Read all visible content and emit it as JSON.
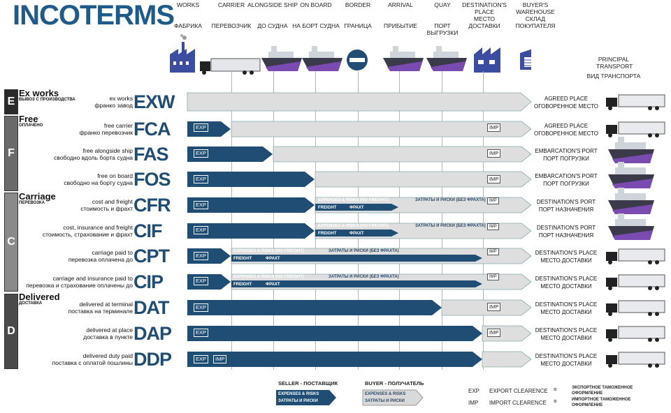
{
  "title": "INCOTERMS",
  "columns": [
    {
      "en": "WORKS",
      "ru": "ФАБРИКА"
    },
    {
      "en": "CARRIER",
      "ru": "ПЕРЕВОЗЧИК"
    },
    {
      "en": "ALONGSIDE SHIP",
      "ru": "ДО СУДНА"
    },
    {
      "en": "ON BOARD",
      "ru": "НА БОРТ СУДНА"
    },
    {
      "en": "BORDER",
      "ru": "ГРАНИЦА"
    },
    {
      "en": "ARRIVAL",
      "ru": "ПРИБЫТИЕ"
    },
    {
      "en": "QUAY",
      "ru": "ПОРТ ВЫГРУЗКИ"
    },
    {
      "en": "DESTINATION'S PLACE",
      "ru": "МЕСТО ДОСТАВКИ"
    },
    {
      "en": "BUYER'S WAREHOUSE",
      "ru": "СКЛАД ПОКУПАТЕЛЯ"
    }
  ],
  "principal_transport": {
    "en": "PRINCIPAL TRANSPORT",
    "ru": "ВИД ТРАНСПОРТА"
  },
  "groups": [
    {
      "letter": "E",
      "name": "Ex works",
      "sub": "ВЫВОЗ С ПРОИЗВОДСТВА"
    },
    {
      "letter": "F",
      "name": "Free",
      "sub": "ОПЛАЧЕНО"
    },
    {
      "letter": "C",
      "name": "Carriage",
      "sub": "ПЕРЕВОЗКА"
    },
    {
      "letter": "D",
      "name": "Delivered",
      "sub": "ДОСТАВКА"
    }
  ],
  "rows": [
    {
      "code": "EXW",
      "en": "ex works",
      "ru": "франко завод",
      "dest_en": "AGREED PLACE",
      "dest_ru": "ОГОВОРЕННОЕ МЕСТО"
    },
    {
      "code": "FCA",
      "en": "free carrier",
      "ru": "франко перевозчик",
      "dest_en": "AGREED PLACE",
      "dest_ru": "ОГОВОРЕННОЕ МЕСТО"
    },
    {
      "code": "FAS",
      "en": "free alongside ship",
      "ru": "свободно вдоль борта судна",
      "dest_en": "EMBARCATION'S PORT",
      "dest_ru": "ПОРТ ПОГРУЗКИ"
    },
    {
      "code": "FOS",
      "en": "free on board",
      "ru": "свободно на борту судна",
      "dest_en": "EMBARCATION'S PORT",
      "dest_ru": "ПОРТ ПОГРУЗКИ"
    },
    {
      "code": "CFR",
      "en": "cost and freight",
      "ru": "стоимость и фрахт",
      "dest_en": "DESTINATION'S PORT",
      "dest_ru": "ПОРТ НАЗНАЧЕНИЯ"
    },
    {
      "code": "CIF",
      "en": "cost, insurance and freight",
      "ru": "стоимость, страхование и фрахт",
      "dest_en": "DESTINATION'S PORT",
      "dest_ru": "ПОРТ НАЗНАЧЕНИЯ"
    },
    {
      "code": "CPT",
      "en": "carriage paid to",
      "ru": "перевозка оплачена до",
      "dest_en": "DESTINATION'S PLACE",
      "dest_ru": "МЕСТО ДОСТАВКИ"
    },
    {
      "code": "CIP",
      "en": "carriage and insurance paid to",
      "ru": "перевозка и страхование оплачены до",
      "dest_en": "DESTINATION'S PLACE",
      "dest_ru": "МЕСТО ДОСТАВКИ"
    },
    {
      "code": "DAT",
      "en": "delivered at terminal",
      "ru": "поставка на терминале",
      "dest_en": "DESTINATION'S PLACE",
      "dest_ru": "МЕСТО ДОСТАВКИ"
    },
    {
      "code": "DAP",
      "en": "delivered at place",
      "ru": "доставка в пункте",
      "dest_en": "DESTINATION'S PLACE",
      "dest_ru": "МЕСТО ДОСТАВКИ"
    },
    {
      "code": "DDP",
      "en": "delivered duty paid",
      "ru": "поставка с оплатой пошлины",
      "dest_en": "DESTINATION'S PLACE",
      "dest_ru": "МЕСТО ДОСТАВКИ"
    }
  ],
  "labels": {
    "exp": "EXP",
    "imp": "IMP",
    "exp_risks_no_freight": "EXPENSES & RISKS (NO FREIGHT)",
    "ru_risks_no_freight_1": "ЗАТРАТЫ И РИСКИ (БЕЗ ФРАХТА)",
    "ru_risks_no_freight_2": "ЗАТРАТЫ И РИСКИ (БЕЗ ФРАХТА)",
    "freight": "FREIGHT",
    "fracht": "ФРАХТ"
  },
  "legend": {
    "seller": "SELLER - ПОСТАВЩИК",
    "buyer": "BUYER - ПОЛУЧАТЕЛЬ",
    "box_en": "EXPENSES & RISKS",
    "box_ru": "ЗАТРАТЫ И РИСКИ",
    "exp_code": "EXP",
    "exp_text": "EXPORT CLEARENCE",
    "exp_ru": "ЭКСПОРТНОЕ ТАМОЖЕННОЕ ОФОРМЛЕНИЕ",
    "imp_code": "IMP",
    "imp_text": "IMPORT CLEARENCE",
    "imp_ru": "ИМПОРТНОЕ ТАМОЖЕННОЕ ОФОРМЛЕНИЕ",
    "dash": "="
  },
  "colors": {
    "seller": "#1f4d73",
    "buyer": "#d9d9d9",
    "title": "#1f5b8a",
    "group_e": "#2a2a2a",
    "group_f": "#6a6a6a",
    "group_c": "#8a8a8a",
    "group_d": "#4a4a4a"
  }
}
